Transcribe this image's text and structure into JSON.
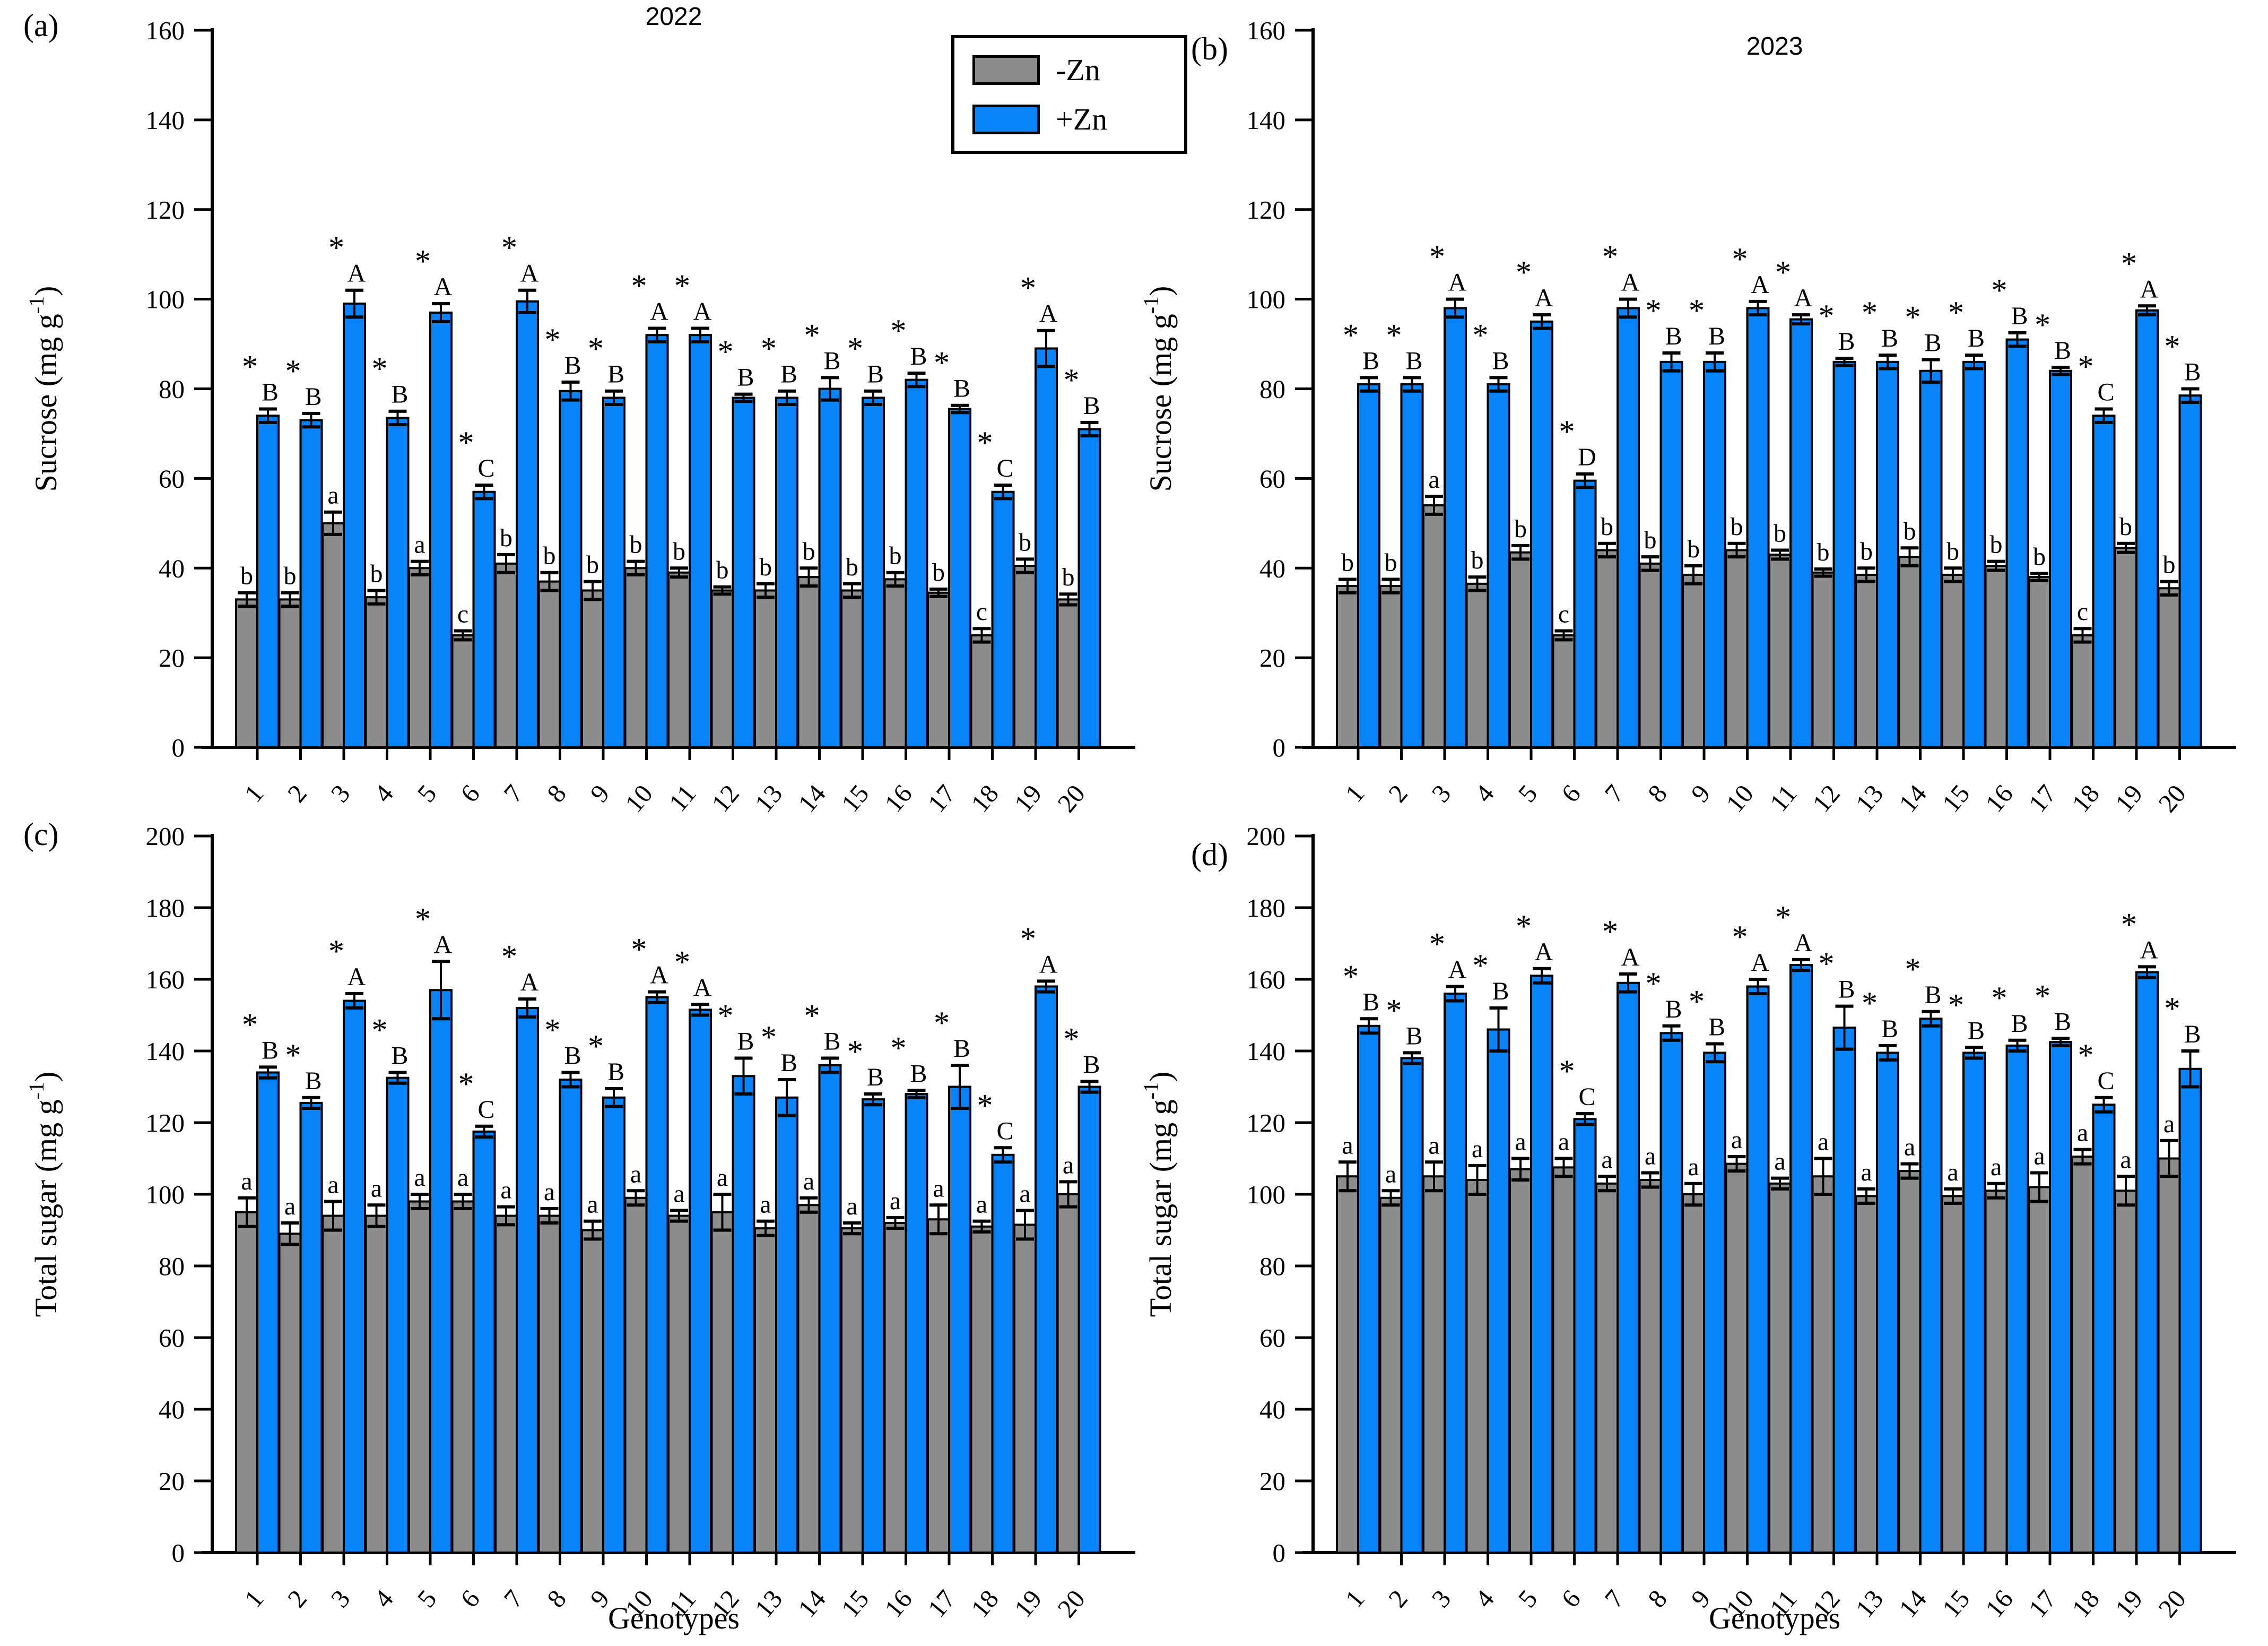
{
  "figure": {
    "xlabel": "Genotypes",
    "colors": {
      "minus_zn": "#8c8c8c",
      "plus_zn": "#0984f8",
      "axis": "#000000"
    },
    "legend": [
      {
        "label": "-Zn",
        "color": "minus_zn"
      },
      {
        "label": "+Zn",
        "color": "plus_zn"
      }
    ]
  },
  "chart_data": [
    {
      "id": "a",
      "type": "bar",
      "panel_label": "(a)",
      "title": "2022",
      "ylabel": {
        "pre": "Sucrose (mg g",
        "sup": "-1",
        "end": ")"
      },
      "ylim": [
        0,
        160
      ],
      "ytick_step": 20,
      "grid": false,
      "categories": [
        "1",
        "2",
        "3",
        "4",
        "5",
        "6",
        "7",
        "8",
        "9",
        "10",
        "11",
        "12",
        "13",
        "14",
        "15",
        "16",
        "17",
        "18",
        "19",
        "20"
      ],
      "series": [
        {
          "name": "-Zn",
          "color": "minus_zn",
          "star": false,
          "values": [
            33,
            33,
            50,
            33.5,
            40,
            25,
            41,
            37,
            35,
            40,
            39,
            35,
            35,
            38,
            35,
            37.5,
            34.5,
            25,
            40.5,
            33
          ],
          "errors": [
            1.5,
            1.5,
            2.5,
            1.5,
            1.5,
            1,
            2,
            2,
            2,
            1.5,
            1,
            0.8,
            1.5,
            2,
            1.5,
            1.5,
            0.8,
            1.5,
            1.5,
            1.2
          ],
          "letters": [
            "b",
            "b",
            "a",
            "b",
            "a",
            "c",
            "b",
            "b",
            "b",
            "b",
            "b",
            "b",
            "b",
            "b",
            "b",
            "b",
            "b",
            "c",
            "b",
            "b"
          ]
        },
        {
          "name": "+Zn",
          "color": "plus_zn",
          "star": true,
          "values": [
            74,
            73,
            99,
            73.5,
            97,
            57,
            99.5,
            79.5,
            78,
            92,
            92,
            78,
            78,
            80,
            78,
            82,
            75.5,
            57,
            89,
            71
          ],
          "errors": [
            1.5,
            1.5,
            3,
            1.5,
            2,
            1.5,
            2.5,
            2,
            1.5,
            1.5,
            1.5,
            0.8,
            1.5,
            2.5,
            1.5,
            1.5,
            0.8,
            1.5,
            4,
            1.5
          ],
          "letters": [
            "B",
            "B",
            "A",
            "B",
            "A",
            "C",
            "A",
            "B",
            "B",
            "A",
            "A",
            "B",
            "B",
            "B",
            "B",
            "B",
            "B",
            "C",
            "A",
            "B"
          ]
        }
      ]
    },
    {
      "id": "b",
      "type": "bar",
      "panel_label": "(b)",
      "title": "2023",
      "ylabel": {
        "pre": "Sucrose (mg g",
        "sup": "-1",
        "end": ")"
      },
      "ylim": [
        0,
        160
      ],
      "ytick_step": 20,
      "grid": false,
      "categories": [
        "1",
        "2",
        "3",
        "4",
        "5",
        "6",
        "7",
        "8",
        "9",
        "10",
        "11",
        "12",
        "13",
        "14",
        "15",
        "16",
        "17",
        "18",
        "19",
        "20"
      ],
      "series": [
        {
          "name": "-Zn",
          "color": "minus_zn",
          "star": false,
          "values": [
            36,
            36,
            54,
            36.5,
            43.5,
            25,
            44,
            41,
            38.5,
            44,
            43,
            39,
            38.5,
            42.5,
            38.5,
            40.5,
            38,
            25,
            44.5,
            35.5
          ],
          "errors": [
            1.5,
            1.5,
            2,
            1.5,
            1.5,
            1,
            1.5,
            1.5,
            2,
            1.5,
            1,
            0.8,
            1.5,
            2,
            1.5,
            1,
            0.8,
            1.5,
            1,
            1.5
          ],
          "letters": [
            "b",
            "b",
            "a",
            "b",
            "b",
            "c",
            "b",
            "b",
            "b",
            "b",
            "b",
            "b",
            "b",
            "b",
            "b",
            "b",
            "b",
            "c",
            "b",
            "b"
          ]
        },
        {
          "name": "+Zn",
          "color": "plus_zn",
          "star": true,
          "values": [
            81,
            81,
            98,
            81,
            95,
            59.5,
            98,
            86,
            86,
            98,
            95.5,
            86,
            86,
            84,
            86,
            91,
            84,
            74,
            97.5,
            78.5
          ],
          "errors": [
            1.5,
            1.5,
            2,
            1.5,
            1.5,
            1.5,
            2,
            2,
            2,
            1.5,
            1,
            0.8,
            1.5,
            2.5,
            1.5,
            1.5,
            0.8,
            1.5,
            1,
            1.5
          ],
          "letters": [
            "B",
            "B",
            "A",
            "B",
            "A",
            "D",
            "A",
            "B",
            "B",
            "A",
            "A",
            "B",
            "B",
            "B",
            "B",
            "B",
            "B",
            "C",
            "A",
            "B"
          ]
        }
      ]
    },
    {
      "id": "c",
      "type": "bar",
      "panel_label": "(c)",
      "title": "",
      "ylabel": {
        "pre": "Total sugar (mg g",
        "sup": "-1",
        "end": ")"
      },
      "ylim": [
        0,
        200
      ],
      "ytick_step": 20,
      "grid": false,
      "categories": [
        "1",
        "2",
        "3",
        "4",
        "5",
        "6",
        "7",
        "8",
        "9",
        "10",
        "11",
        "12",
        "13",
        "14",
        "15",
        "16",
        "17",
        "18",
        "19",
        "20"
      ],
      "series": [
        {
          "name": "-Zn",
          "color": "minus_zn",
          "star": false,
          "values": [
            95,
            89,
            94,
            94,
            98,
            98,
            94,
            94,
            90,
            99,
            94,
            95,
            90.5,
            97,
            90.5,
            92,
            93,
            91,
            91.5,
            100
          ],
          "errors": [
            4,
            3,
            4,
            3,
            2,
            2,
            2.5,
            2,
            2.5,
            2,
            1.5,
            5,
            2,
            2,
            1.5,
            1.5,
            4,
            1.5,
            4,
            3.5
          ],
          "letters": [
            "a",
            "a",
            "a",
            "a",
            "a",
            "a",
            "a",
            "a",
            "a",
            "a",
            "a",
            "a",
            "a",
            "a",
            "a",
            "a",
            "a",
            "a",
            "a",
            "a"
          ]
        },
        {
          "name": "+Zn",
          "color": "plus_zn",
          "star": true,
          "values": [
            134,
            125.5,
            154,
            132.5,
            157,
            117.5,
            152,
            132,
            127,
            155,
            151.5,
            133,
            127,
            136,
            126.5,
            128,
            130,
            111,
            158,
            130
          ],
          "errors": [
            1.5,
            1.5,
            2,
            1.5,
            8,
            1.5,
            2.5,
            2,
            2.5,
            1.5,
            1.5,
            5,
            5,
            2,
            1.5,
            1,
            6,
            2,
            1.5,
            1.5
          ],
          "letters": [
            "B",
            "B",
            "A",
            "B",
            "A",
            "C",
            "A",
            "B",
            "B",
            "A",
            "A",
            "B",
            "B",
            "B",
            "B",
            "B",
            "B",
            "C",
            "A",
            "B"
          ]
        }
      ]
    },
    {
      "id": "d",
      "type": "bar",
      "panel_label": "(d)",
      "title": "",
      "ylabel": {
        "pre": "Total sugar (mg g",
        "sup": "-1",
        "end": ")"
      },
      "ylim": [
        0,
        200
      ],
      "ytick_step": 20,
      "grid": false,
      "categories": [
        "1",
        "2",
        "3",
        "4",
        "5",
        "6",
        "7",
        "8",
        "9",
        "10",
        "11",
        "12",
        "13",
        "14",
        "15",
        "16",
        "17",
        "18",
        "19",
        "20"
      ],
      "series": [
        {
          "name": "-Zn",
          "color": "minus_zn",
          "star": false,
          "values": [
            105,
            99,
            105,
            104,
            107,
            107.5,
            103,
            104,
            100,
            108.5,
            103,
            105,
            99.5,
            106.5,
            99.5,
            101,
            102,
            110.5,
            101,
            110
          ],
          "errors": [
            4,
            2,
            4,
            4,
            3,
            2.5,
            2,
            2,
            3,
            2,
            1.5,
            5,
            2,
            2,
            2,
            2,
            4,
            2,
            4,
            5
          ],
          "letters": [
            "a",
            "a",
            "a",
            "a",
            "a",
            "a",
            "a",
            "a",
            "a",
            "a",
            "a",
            "a",
            "a",
            "a",
            "a",
            "a",
            "a",
            "a",
            "a",
            "a"
          ]
        },
        {
          "name": "+Zn",
          "color": "plus_zn",
          "star": true,
          "values": [
            147,
            138,
            156,
            146,
            161,
            121,
            159,
            145,
            139.5,
            158,
            164,
            146.5,
            139.5,
            149,
            139.5,
            141.5,
            142.5,
            125,
            162,
            135
          ],
          "errors": [
            2,
            1.5,
            2,
            6,
            2,
            1.5,
            2.5,
            2,
            2.5,
            2,
            1.5,
            6,
            2,
            2,
            1.5,
            1.5,
            1,
            2,
            1.5,
            5
          ],
          "letters": [
            "B",
            "B",
            "A",
            "B",
            "A",
            "C",
            "A",
            "B",
            "B",
            "A",
            "A",
            "B",
            "B",
            "B",
            "B",
            "B",
            "B",
            "C",
            "A",
            "B"
          ]
        }
      ]
    }
  ]
}
